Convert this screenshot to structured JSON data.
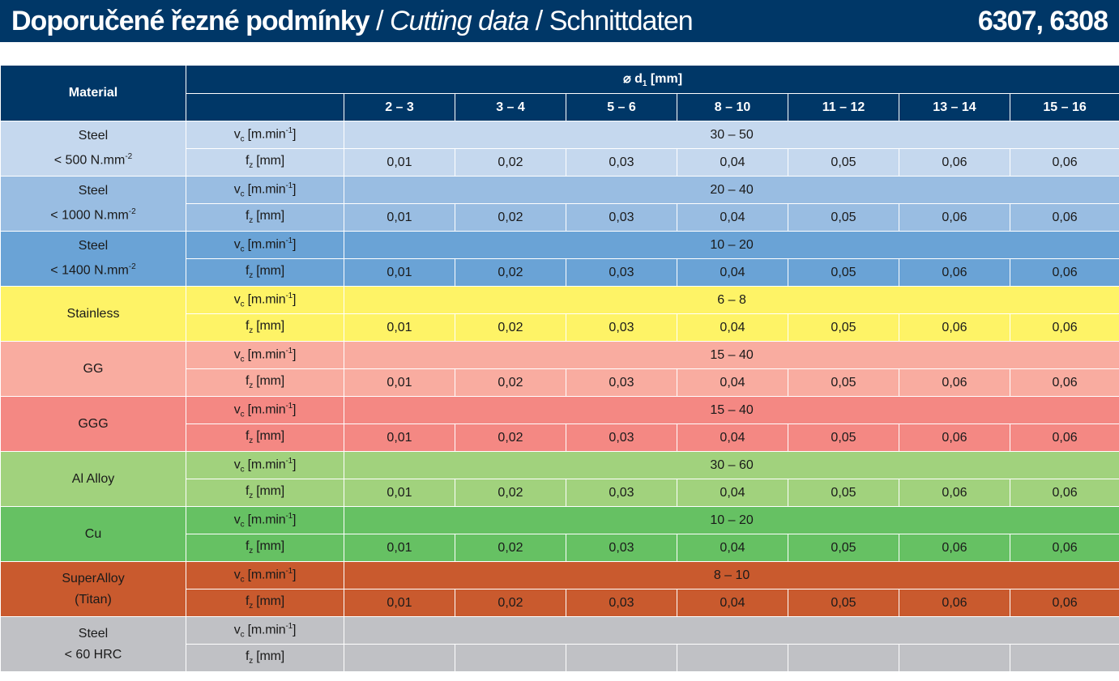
{
  "header": {
    "title_cz": "Doporučené řezné podmínky",
    "sep1": " / ",
    "title_en": "Cutting data",
    "sep2": " / ",
    "title_de": "Schnittdaten",
    "codes": "6307, 6308"
  },
  "table": {
    "material_header": "Material",
    "diameter_header": {
      "symbol": "⌀ d",
      "sub": "1",
      "unit": " [mm]"
    },
    "columns": [
      "2 – 3",
      "3 – 4",
      "5 – 6",
      "8 – 10",
      "11 – 12",
      "13 – 14",
      "15 – 16"
    ],
    "vc_label": {
      "v": "v",
      "sub": "c",
      "unit": " [m.min",
      "sup": "-1",
      "close": "]"
    },
    "fz_label": {
      "f": "f",
      "sub": "z",
      "unit": " [mm]"
    },
    "rows": [
      {
        "line1": "Steel",
        "line2": "< 500 N.mm",
        "sup": "-2",
        "vc": "30 – 50",
        "fz": [
          "0,01",
          "0,02",
          "0,03",
          "0,04",
          "0,05",
          "0,06",
          "0,06"
        ],
        "color": "#c5d8ee"
      },
      {
        "line1": "Steel",
        "line2": "< 1000 N.mm",
        "sup": "-2",
        "vc": "20 – 40",
        "fz": [
          "0,01",
          "0,02",
          "0,03",
          "0,04",
          "0,05",
          "0,06",
          "0,06"
        ],
        "color": "#99bde2"
      },
      {
        "line1": "Steel",
        "line2": "< 1400 N.mm",
        "sup": "-2",
        "vc": "10 – 20",
        "fz": [
          "0,01",
          "0,02",
          "0,03",
          "0,04",
          "0,05",
          "0,06",
          "0,06"
        ],
        "color": "#6aa3d6"
      },
      {
        "line1": "Stainless",
        "line2": "",
        "sup": "",
        "vc": "6 – 8",
        "fz": [
          "0,01",
          "0,02",
          "0,03",
          "0,04",
          "0,05",
          "0,06",
          "0,06"
        ],
        "color": "#fef366"
      },
      {
        "line1": "GG",
        "line2": "",
        "sup": "",
        "vc": "15 – 40",
        "fz": [
          "0,01",
          "0,02",
          "0,03",
          "0,04",
          "0,05",
          "0,06",
          "0,06"
        ],
        "color": "#f9aca0"
      },
      {
        "line1": "GGG",
        "line2": "",
        "sup": "",
        "vc": "15 – 40",
        "fz": [
          "0,01",
          "0,02",
          "0,03",
          "0,04",
          "0,05",
          "0,06",
          "0,06"
        ],
        "color": "#f48883"
      },
      {
        "line1": "Al Alloy",
        "line2": "",
        "sup": "",
        "vc": "30 – 60",
        "fz": [
          "0,01",
          "0,02",
          "0,03",
          "0,04",
          "0,05",
          "0,06",
          "0,06"
        ],
        "color": "#a1d27d"
      },
      {
        "line1": "Cu",
        "line2": "",
        "sup": "",
        "vc": "10 – 20",
        "fz": [
          "0,01",
          "0,02",
          "0,03",
          "0,04",
          "0,05",
          "0,06",
          "0,06"
        ],
        "color": "#66c163"
      },
      {
        "line1": "SuperAlloy",
        "line2": "(Titan)",
        "sup": "",
        "vc": "8 – 10",
        "fz": [
          "0,01",
          "0,02",
          "0,03",
          "0,04",
          "0,05",
          "0,06",
          "0,06"
        ],
        "color": "#c95a2e"
      },
      {
        "line1": "Steel",
        "line2": "< 60 HRC",
        "sup": "",
        "vc": "",
        "fz": [
          "",
          "",
          "",
          "",
          "",
          "",
          ""
        ],
        "color": "#c0c1c5"
      }
    ]
  }
}
